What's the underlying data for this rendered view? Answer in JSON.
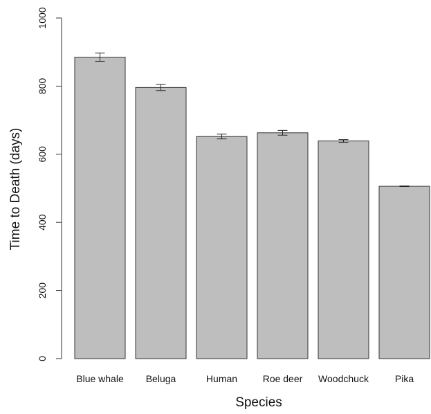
{
  "chart_data": {
    "type": "bar",
    "title": "",
    "xlabel": "Species",
    "ylabel": "Time to Death (days)",
    "ylim": [
      0,
      1000
    ],
    "yticks": [
      0,
      200,
      400,
      600,
      800,
      1000
    ],
    "categories": [
      "Blue whale",
      "Beluga",
      "Human",
      "Roe deer",
      "Woodchuck",
      "Pika"
    ],
    "values": [
      885,
      796,
      652,
      663,
      639,
      506
    ],
    "error_bars": [
      [
        873,
        897
      ],
      [
        787,
        805
      ],
      [
        645,
        659
      ],
      [
        656,
        670
      ],
      [
        635,
        643
      ],
      [
        505,
        507
      ]
    ],
    "bar_color": "#bebebe",
    "bar_edge_color": "#333333",
    "grid": false,
    "legend": "none"
  }
}
